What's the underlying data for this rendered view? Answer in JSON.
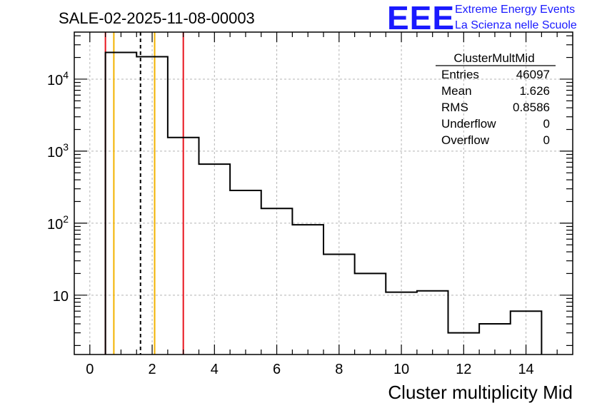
{
  "header": {
    "title": "SALE-02-2025-11-08-00003",
    "logo_text": "EEE",
    "logo_line1": "Extreme Energy Events",
    "logo_line2": "La Scienza nelle Scuole"
  },
  "stats": {
    "name": "ClusterMultMid",
    "rows": [
      {
        "label": "Entries",
        "value": "46097"
      },
      {
        "label": "Mean",
        "value": "1.626"
      },
      {
        "label": "RMS",
        "value": "0.8586"
      },
      {
        "label": "Underflow",
        "value": "0"
      },
      {
        "label": "Overflow",
        "value": "0"
      }
    ]
  },
  "colors": {
    "histogram": "#000000",
    "red_line": "#e8141e",
    "orange_line": "#f2b200",
    "mean_line": "#000000",
    "grid": "#b4b4b4",
    "logo": "#1a1aff"
  },
  "chart_data": {
    "type": "histogram",
    "title": "SALE-02-2025-11-08-00003",
    "xlabel": "Cluster multiplicity Mid",
    "ylabel": "",
    "y_scale": "log",
    "xlim": [
      -0.5,
      15.5
    ],
    "ylim": [
      1.5,
      45000
    ],
    "grid": true,
    "bins": [
      {
        "low": 0.5,
        "high": 1.5,
        "count": 23500
      },
      {
        "low": 1.5,
        "high": 2.5,
        "count": 20500
      },
      {
        "low": 2.5,
        "high": 3.5,
        "count": 1550
      },
      {
        "low": 3.5,
        "high": 4.5,
        "count": 660
      },
      {
        "low": 4.5,
        "high": 5.5,
        "count": 285
      },
      {
        "low": 5.5,
        "high": 6.5,
        "count": 160
      },
      {
        "low": 6.5,
        "high": 7.5,
        "count": 95
      },
      {
        "low": 7.5,
        "high": 8.5,
        "count": 37
      },
      {
        "low": 8.5,
        "high": 9.5,
        "count": 20
      },
      {
        "low": 9.5,
        "high": 10.5,
        "count": 11
      },
      {
        "low": 10.5,
        "high": 11.5,
        "count": 11.5
      },
      {
        "low": 11.5,
        "high": 12.5,
        "count": 3
      },
      {
        "low": 12.5,
        "high": 13.5,
        "count": 4
      },
      {
        "low": 13.5,
        "high": 14.5,
        "count": 6
      }
    ],
    "x_ticks": [
      {
        "value": 0,
        "label": "0"
      },
      {
        "value": 2,
        "label": "2"
      },
      {
        "value": 4,
        "label": "4"
      },
      {
        "value": 6,
        "label": "6"
      },
      {
        "value": 8,
        "label": "8"
      },
      {
        "value": 10,
        "label": "10"
      },
      {
        "value": 12,
        "label": "12"
      },
      {
        "value": 14,
        "label": "14"
      }
    ],
    "y_ticks": [
      {
        "value": 10,
        "base": "10",
        "exp": ""
      },
      {
        "value": 100,
        "base": "10",
        "exp": "2"
      },
      {
        "value": 1000,
        "base": "10",
        "exp": "3"
      },
      {
        "value": 10000,
        "base": "10",
        "exp": "4"
      }
    ],
    "vertical_lines": [
      {
        "name": "red-line-low",
        "x": 0.5,
        "color": "#e8141e",
        "style": "solid"
      },
      {
        "name": "orange-line-low",
        "x": 0.77,
        "color": "#f2b200",
        "style": "solid"
      },
      {
        "name": "mean-line",
        "x": 1.626,
        "color": "#000000",
        "style": "dashed"
      },
      {
        "name": "orange-line-high",
        "x": 2.08,
        "color": "#f2b200",
        "style": "solid"
      },
      {
        "name": "red-line-high",
        "x": 3.0,
        "color": "#e8141e",
        "style": "solid"
      }
    ]
  }
}
